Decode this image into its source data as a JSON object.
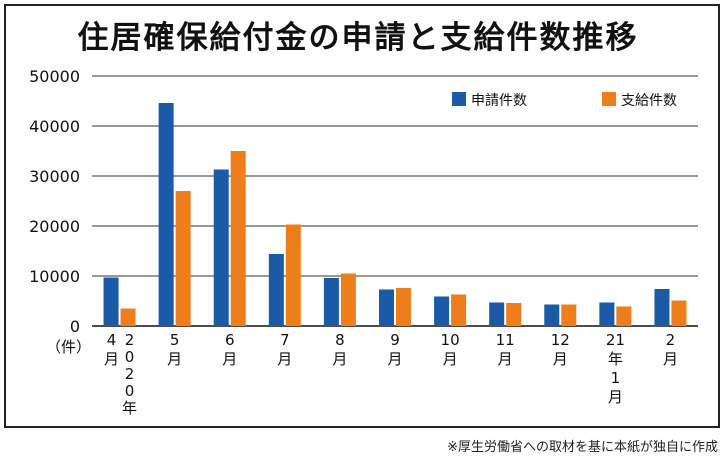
{
  "title": "住居確保給付金の申請と支給件数推移",
  "note": "※厚生労働省への取材を基に本紙が独自に作成",
  "colors": {
    "applications": "#1a5aa6",
    "payments": "#ee7d1c",
    "grid": "#333333"
  },
  "chart_data": {
    "type": "bar",
    "title": "住居確保給付金の申請と支給件数推移",
    "unit_label": "（件）",
    "categories": [
      "4月2020年",
      "5月",
      "6月",
      "7月",
      "8月",
      "9月",
      "10月",
      "11月",
      "12月",
      "21年1月",
      "2月"
    ],
    "category_lines": [
      [
        "4",
        "月"
      ],
      [
        "5",
        "月"
      ],
      [
        "6",
        "月"
      ],
      [
        "7",
        "月"
      ],
      [
        "8",
        "月"
      ],
      [
        "9",
        "月"
      ],
      [
        "10",
        "月"
      ],
      [
        "11",
        "月"
      ],
      [
        "12",
        "月"
      ],
      [
        "21",
        "年",
        "1",
        "月"
      ],
      [
        "2",
        "月"
      ]
    ],
    "secondary_label": [
      "2",
      "0",
      "2",
      "0",
      "年"
    ],
    "series": [
      {
        "name": "申請件数",
        "values": [
          9700,
          44600,
          31300,
          14400,
          9600,
          7300,
          5900,
          4700,
          4300,
          4700,
          7400
        ]
      },
      {
        "name": "支給件数",
        "values": [
          3500,
          27000,
          35000,
          20300,
          10500,
          7600,
          6300,
          4600,
          4300,
          3900,
          5100
        ]
      }
    ],
    "ylim": [
      0,
      50000
    ],
    "yticks": [
      0,
      10000,
      20000,
      30000,
      40000,
      50000
    ],
    "grid": true,
    "legend_position": "top-right"
  }
}
